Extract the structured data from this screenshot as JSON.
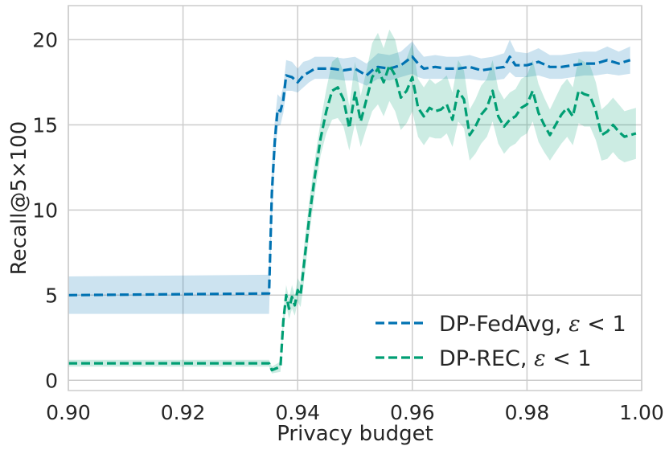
{
  "chart_data": {
    "type": "line",
    "title": "",
    "xlabel": "Privacy budget",
    "ylabel": "Recall@5×100",
    "xlim": [
      0.9,
      1.0
    ],
    "ylim": [
      -0.6,
      22
    ],
    "x_ticks": [
      0.9,
      0.92,
      0.94,
      0.96,
      0.98,
      1.0
    ],
    "x_tick_labels": [
      "0.90",
      "0.92",
      "0.94",
      "0.96",
      "0.98",
      "1.00"
    ],
    "y_ticks": [
      0,
      5,
      10,
      15,
      20
    ],
    "y_tick_labels": [
      "0",
      "5",
      "10",
      "15",
      "20"
    ],
    "grid": true,
    "legend_position": "lower-right",
    "series": [
      {
        "name": "DP-FedAvg, ε < 1",
        "legend_prefix": "DP-FedAvg, ",
        "color": "#0072b2",
        "band_color": "#0072b2",
        "x": [
          0.9,
          0.935,
          0.9355,
          0.936,
          0.9365,
          0.937,
          0.9375,
          0.938,
          0.939,
          0.94,
          0.941,
          0.942,
          0.943,
          0.944,
          0.946,
          0.948,
          0.95,
          0.952,
          0.953,
          0.954,
          0.956,
          0.958,
          0.96,
          0.961,
          0.962,
          0.964,
          0.966,
          0.968,
          0.97,
          0.972,
          0.974,
          0.976,
          0.977,
          0.978,
          0.98,
          0.982,
          0.984,
          0.986,
          0.988,
          0.99,
          0.992,
          0.994,
          0.996,
          0.998
        ],
        "y": [
          5.0,
          5.1,
          11.0,
          14.0,
          15.9,
          15.8,
          16.5,
          17.9,
          17.8,
          17.5,
          17.9,
          18.1,
          18.3,
          18.3,
          18.3,
          18.2,
          18.3,
          17.9,
          18.2,
          18.4,
          18.3,
          18.5,
          19.0,
          18.6,
          18.3,
          18.4,
          18.3,
          18.3,
          18.4,
          18.2,
          18.3,
          18.4,
          19.0,
          18.5,
          18.5,
          18.7,
          18.4,
          18.4,
          18.5,
          18.6,
          18.6,
          18.8,
          18.6,
          18.8
        ],
        "lower": [
          3.9,
          3.9,
          9.5,
          12.8,
          14.9,
          15.0,
          15.7,
          17.0,
          17.0,
          16.9,
          17.2,
          17.5,
          17.7,
          17.7,
          17.7,
          17.6,
          17.6,
          17.3,
          17.5,
          17.7,
          17.6,
          17.8,
          18.0,
          17.8,
          17.7,
          17.7,
          17.7,
          17.7,
          17.7,
          17.6,
          17.6,
          17.7,
          18.1,
          17.8,
          17.8,
          17.9,
          17.7,
          17.7,
          17.8,
          17.9,
          17.9,
          18.0,
          17.9,
          18.0
        ],
        "upper": [
          6.1,
          6.2,
          12.5,
          15.2,
          16.8,
          16.6,
          17.3,
          18.8,
          18.7,
          18.3,
          18.7,
          18.8,
          19.0,
          19.0,
          19.0,
          18.9,
          19.0,
          18.6,
          18.9,
          19.2,
          19.1,
          19.3,
          19.9,
          19.4,
          19.0,
          19.1,
          19.0,
          19.0,
          19.1,
          18.9,
          19.0,
          19.2,
          20.0,
          19.3,
          19.2,
          19.5,
          19.1,
          19.1,
          19.2,
          19.3,
          19.3,
          19.6,
          19.3,
          19.6
        ]
      },
      {
        "name": "DP-REC, ε < 1",
        "legend_prefix": "DP-REC, ",
        "color": "#009e73",
        "band_color": "#009e73",
        "x": [
          0.9,
          0.935,
          0.9355,
          0.937,
          0.9375,
          0.938,
          0.9385,
          0.939,
          0.9395,
          0.94,
          0.9405,
          0.941,
          0.942,
          0.943,
          0.944,
          0.945,
          0.946,
          0.947,
          0.948,
          0.949,
          0.95,
          0.951,
          0.952,
          0.953,
          0.954,
          0.955,
          0.956,
          0.957,
          0.958,
          0.959,
          0.96,
          0.961,
          0.962,
          0.963,
          0.964,
          0.965,
          0.966,
          0.967,
          0.968,
          0.969,
          0.97,
          0.971,
          0.972,
          0.973,
          0.974,
          0.975,
          0.976,
          0.977,
          0.978,
          0.979,
          0.98,
          0.981,
          0.982,
          0.983,
          0.984,
          0.985,
          0.986,
          0.987,
          0.988,
          0.989,
          0.99,
          0.991,
          0.992,
          0.993,
          0.994,
          0.995,
          0.996,
          0.997,
          0.998,
          0.999
        ],
        "y": [
          1.0,
          1.0,
          0.6,
          0.8,
          3.5,
          5.0,
          4.2,
          4.9,
          4.4,
          5.3,
          5.0,
          6.5,
          9.5,
          12.0,
          14.2,
          15.8,
          17.0,
          17.2,
          16.5,
          14.8,
          16.9,
          15.2,
          16.5,
          17.8,
          18.3,
          17.5,
          18.5,
          17.9,
          16.6,
          17.0,
          17.8,
          16.0,
          15.5,
          16.0,
          15.8,
          15.9,
          16.2,
          15.3,
          17.0,
          16.5,
          14.4,
          14.9,
          15.6,
          16.0,
          17.0,
          15.5,
          14.9,
          15.3,
          15.5,
          16.0,
          16.2,
          17.0,
          15.7,
          15.0,
          14.4,
          15.0,
          15.6,
          16.0,
          15.5,
          17.0,
          16.8,
          16.7,
          15.8,
          14.4,
          14.6,
          15.0,
          14.6,
          14.3,
          14.4,
          14.5
        ],
        "lower": [
          0.8,
          0.8,
          0.4,
          0.5,
          3.0,
          4.4,
          3.6,
          4.2,
          3.8,
          4.6,
          4.3,
          5.5,
          8.5,
          11.0,
          13.2,
          14.5,
          15.3,
          15.4,
          14.9,
          13.5,
          15.1,
          13.7,
          14.8,
          15.8,
          16.2,
          15.5,
          16.4,
          15.8,
          14.7,
          15.1,
          15.8,
          14.3,
          13.8,
          14.3,
          14.2,
          14.2,
          14.5,
          13.7,
          15.2,
          14.8,
          12.9,
          13.3,
          13.9,
          14.3,
          15.2,
          13.9,
          13.3,
          13.7,
          13.9,
          14.3,
          14.5,
          15.2,
          14.0,
          13.4,
          12.9,
          13.4,
          13.9,
          14.3,
          13.8,
          15.1,
          14.9,
          14.9,
          14.1,
          12.9,
          13.0,
          13.4,
          13.0,
          12.8,
          12.9,
          13.0
        ],
        "upper": [
          1.2,
          1.2,
          0.8,
          1.1,
          4.0,
          5.6,
          4.8,
          5.6,
          5.0,
          6.0,
          5.7,
          7.5,
          10.5,
          13.0,
          15.2,
          17.1,
          18.7,
          19.0,
          18.1,
          16.1,
          18.7,
          16.7,
          18.2,
          19.8,
          20.4,
          19.5,
          20.6,
          20.0,
          18.5,
          18.9,
          19.8,
          17.7,
          17.2,
          17.7,
          17.4,
          17.6,
          17.9,
          16.9,
          18.8,
          18.2,
          15.9,
          16.5,
          17.3,
          17.7,
          18.8,
          17.1,
          16.5,
          16.9,
          17.1,
          17.7,
          17.9,
          18.8,
          17.4,
          16.6,
          15.9,
          16.6,
          17.3,
          17.7,
          17.2,
          18.9,
          18.7,
          18.5,
          17.5,
          15.9,
          16.2,
          16.6,
          16.2,
          15.8,
          15.9,
          16.0
        ]
      }
    ]
  }
}
